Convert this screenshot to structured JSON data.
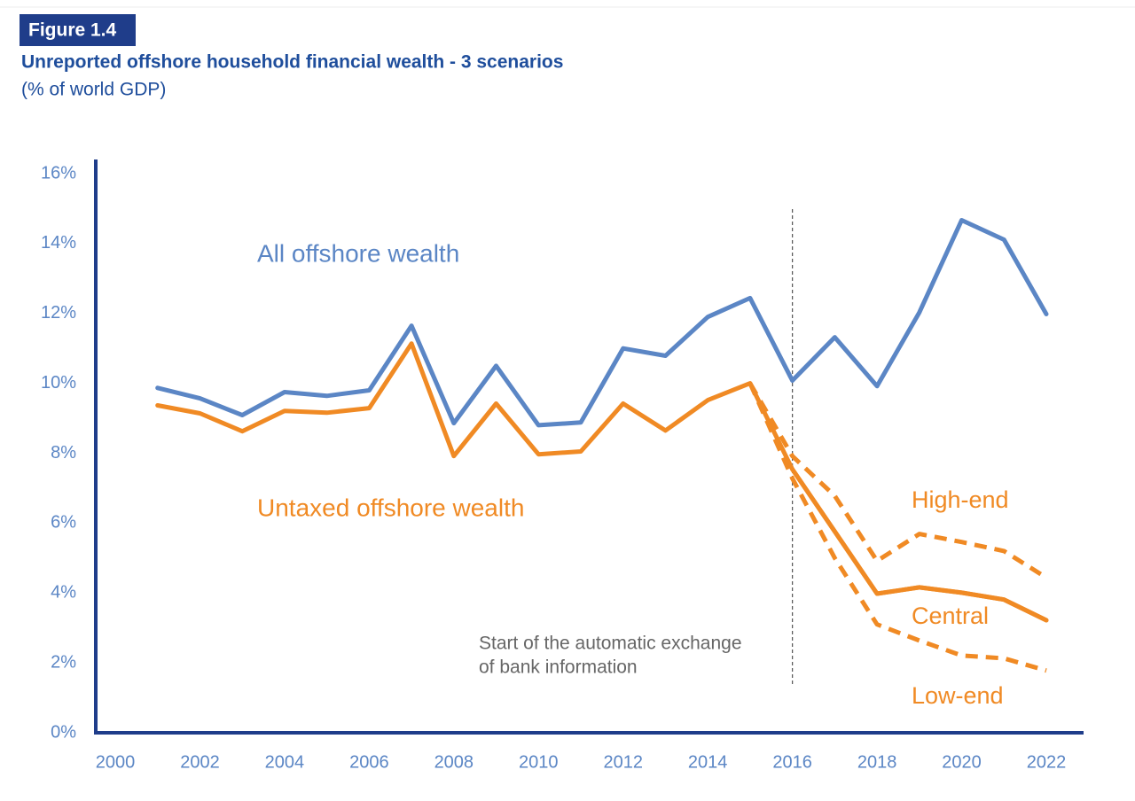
{
  "chart_data": {
    "type": "line",
    "figure_label": "Figure 1.4",
    "title": "Unreported offshore household financial wealth - 3 scenarios",
    "subtitle": "(% of world GDP)",
    "x": [
      2001,
      2002,
      2003,
      2004,
      2005,
      2006,
      2007,
      2008,
      2009,
      2010,
      2011,
      2012,
      2013,
      2014,
      2015,
      2016,
      2017,
      2018,
      2019,
      2020,
      2021,
      2022
    ],
    "xlim": [
      2000,
      2022
    ],
    "xticks": [
      2000,
      2002,
      2004,
      2006,
      2008,
      2010,
      2012,
      2014,
      2016,
      2018,
      2020,
      2022
    ],
    "ylim": [
      0,
      16
    ],
    "yticks": [
      {
        "value": 0,
        "label": "0%"
      },
      {
        "value": 2,
        "label": "2%"
      },
      {
        "value": 4,
        "label": "4%"
      },
      {
        "value": 6,
        "label": "6%"
      },
      {
        "value": 8,
        "label": "8%"
      },
      {
        "value": 10,
        "label": "10%"
      },
      {
        "value": 12,
        "label": "12%"
      },
      {
        "value": 14,
        "label": "14%"
      },
      {
        "value": 16,
        "label": "16%"
      }
    ],
    "grid": false,
    "series": [
      {
        "name": "All offshore wealth",
        "color": "#5b86c5",
        "dashed": false,
        "values": [
          9.87,
          9.57,
          9.09,
          9.75,
          9.64,
          9.8,
          11.65,
          8.86,
          10.5,
          8.8,
          8.88,
          11.0,
          10.79,
          11.9,
          12.44,
          10.08,
          11.32,
          9.92,
          12.03,
          14.67,
          14.11,
          11.98
        ]
      },
      {
        "name": "Untaxed offshore wealth",
        "color": "#f08a24",
        "dashed": false,
        "values": [
          9.37,
          9.14,
          8.63,
          9.21,
          9.16,
          9.29,
          11.14,
          7.92,
          9.42,
          7.97,
          8.05,
          9.42,
          8.65,
          9.52,
          10.0,
          7.54,
          5.76,
          3.98,
          4.16,
          4.01,
          3.81,
          3.22
        ]
      },
      {
        "name": "High-end",
        "color": "#f08a24",
        "dashed": true,
        "values": [
          null,
          null,
          null,
          null,
          null,
          null,
          null,
          null,
          null,
          null,
          null,
          null,
          null,
          null,
          10.0,
          7.92,
          6.78,
          4.92,
          5.69,
          5.46,
          5.2,
          4.44
        ]
      },
      {
        "name": "Central",
        "color": "#f08a24",
        "dashed": false,
        "values": [
          null,
          null,
          null,
          null,
          null,
          null,
          null,
          null,
          null,
          null,
          null,
          null,
          null,
          null,
          null,
          7.54,
          5.76,
          3.98,
          4.16,
          4.01,
          3.81,
          3.22
        ]
      },
      {
        "name": "Low-end",
        "color": "#f08a24",
        "dashed": true,
        "values": [
          null,
          null,
          null,
          null,
          null,
          null,
          null,
          null,
          null,
          null,
          null,
          null,
          null,
          null,
          10.0,
          7.28,
          5.0,
          3.1,
          2.64,
          2.21,
          2.13,
          1.78
        ]
      }
    ],
    "annotation": {
      "x": 2016,
      "lines": [
        "Start of the automatic exchange",
        "of bank information"
      ]
    }
  }
}
